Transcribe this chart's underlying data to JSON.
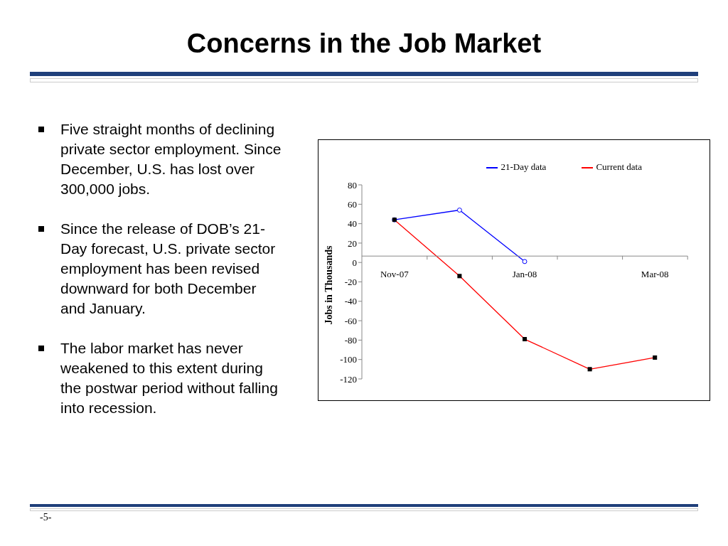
{
  "chart_data": {
    "type": "line",
    "title": "Concerns in the Job Market",
    "ylabel": "Jobs in Thousands",
    "categories": [
      "Nov-07",
      null,
      "Jan-08",
      null,
      "Mar-08"
    ],
    "series": [
      {
        "name": "21-Day data",
        "color": "#0000ff",
        "values": [
          44,
          54,
          1,
          null,
          null
        ],
        "marker": "circle"
      },
      {
        "name": "Current data",
        "color": "#ff0000",
        "values": [
          44,
          -14,
          -79,
          -110,
          -98
        ],
        "marker": "square"
      }
    ],
    "ylim": [
      -120,
      80
    ],
    "yticks": [
      -120,
      -100,
      -80,
      -60,
      -40,
      -20,
      0,
      20,
      40,
      60,
      80
    ],
    "grid": false,
    "legend": "top right",
    "annotations": [
      "Five straight months of declining private sector employment. Since December, U.S. has lost over 300,000 jobs.",
      "Since the release of DOB’s 21-Day forecast, U.S. private sector employment has been revised downward for both December and January.",
      "The labor market has never weakened to this extent during the postwar period without falling into recession.",
      "-5-"
    ]
  }
}
